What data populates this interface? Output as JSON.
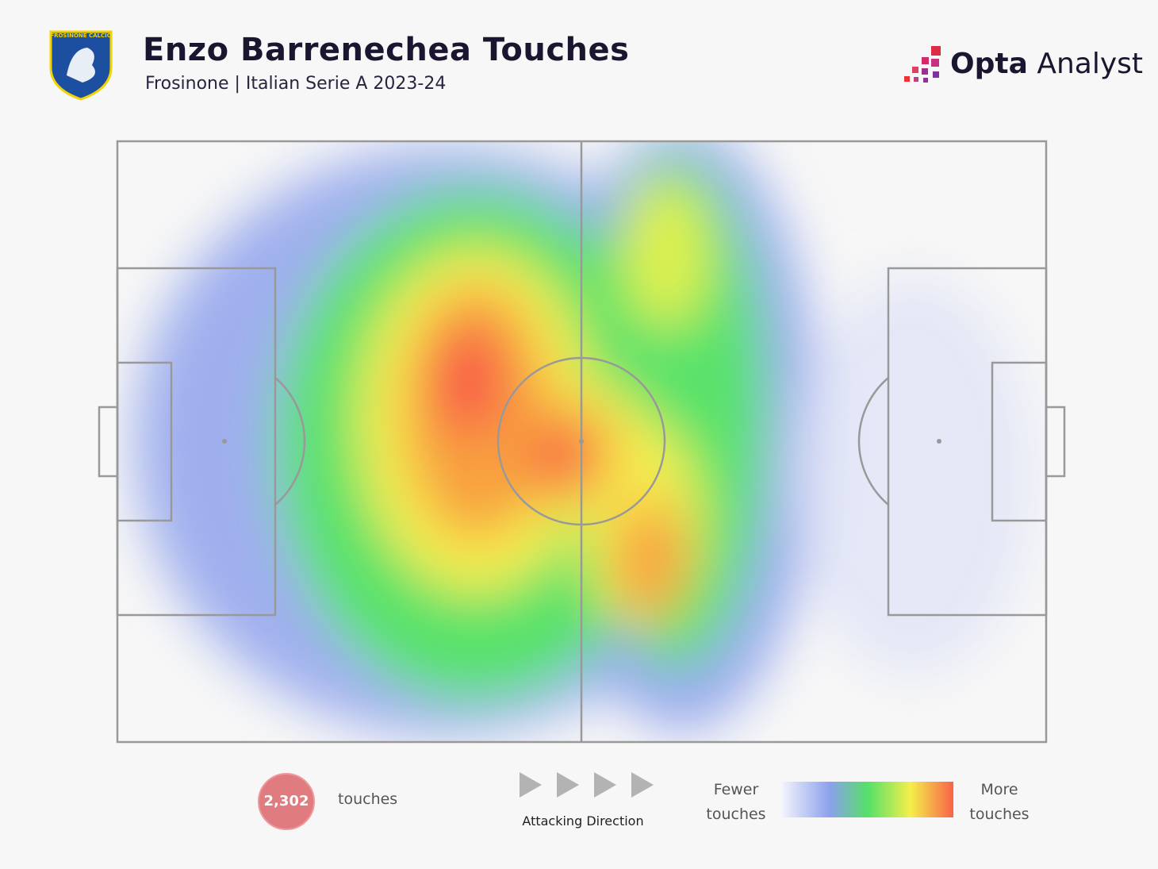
{
  "header": {
    "club": "FROSINONE CALCIO",
    "title": "Enzo Barrenechea Touches",
    "subtitle": "Frosinone | Italian Serie A 2023-24"
  },
  "brand": {
    "name": "Opta",
    "suffix": "Analyst"
  },
  "footer": {
    "touches_count": "2,302",
    "touches_label": "touches",
    "direction_label": "Attacking Direction",
    "scale_low": "Fewer touches",
    "scale_high": "More touches"
  }
}
